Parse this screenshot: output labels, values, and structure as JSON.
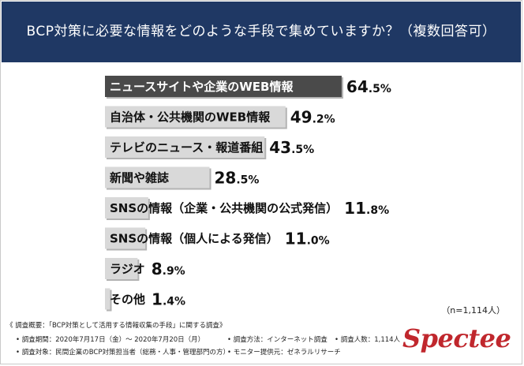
{
  "header": {
    "title": "BCP対策に必要な情報をどのような手段で集めていますか？（複数回答可）"
  },
  "chart_data": {
    "type": "bar",
    "orientation": "horizontal",
    "unit": "%",
    "categories": [
      "ニュースサイトや企業のWEB情報",
      "自治体・公共機関のWEB情報",
      "テレビのニュース・報道番組",
      "新聞や雑誌",
      "SNSの情報（企業・公共機関の公式発信）",
      "SNSの情報（個人による発信）",
      "ラジオ",
      "その他"
    ],
    "values": [
      64.5,
      49.2,
      43.5,
      28.5,
      11.8,
      11.0,
      8.9,
      1.4
    ],
    "value_labels": [
      {
        "int": "64",
        "dec": ".5%"
      },
      {
        "int": "49",
        "dec": ".2%"
      },
      {
        "int": "43",
        "dec": ".5%"
      },
      {
        "int": "28",
        "dec": ".5%"
      },
      {
        "int": "11",
        "dec": ".8%"
      },
      {
        "int": "11",
        "dec": ".0%"
      },
      {
        "int": "8",
        "dec": ".9%"
      },
      {
        "int": "1",
        "dec": ".4%"
      }
    ],
    "colors": [
      "#4a4a4a",
      "#d9d9d9",
      "#d9d9d9",
      "#d9d9d9",
      "#d9d9d9",
      "#d9d9d9",
      "#d9d9d9",
      "#d9d9d9"
    ],
    "xlim": [
      0,
      100
    ]
  },
  "sample_note": "（n=1,114人）",
  "footer": {
    "summary": "《 調査概要：「BCP対策として活用する情報収集の手段」に関する調査》",
    "period": "• 調査期間：2020年7月17日（金）～ 2020年7月20日（月）",
    "method": "• 調査方法：インターネット調査",
    "respondents": "• 調査人数：1,114人",
    "target": "• 調査対象：民間企業のBCP対策担当者（総務・人事・管理部門の方）",
    "provider": "• モニター提供元：ゼネラルリサーチ"
  },
  "logo_text": "Spectee"
}
